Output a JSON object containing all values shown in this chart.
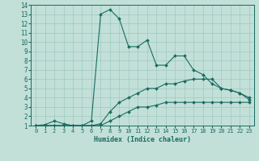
{
  "title": "",
  "xlabel": "Humidex (Indice chaleur)",
  "xlim": [
    -0.5,
    23.5
  ],
  "ylim": [
    1,
    14
  ],
  "xticks": [
    0,
    1,
    2,
    3,
    4,
    5,
    6,
    7,
    8,
    9,
    10,
    11,
    12,
    13,
    14,
    15,
    16,
    17,
    18,
    19,
    20,
    21,
    22,
    23
  ],
  "yticks": [
    1,
    2,
    3,
    4,
    5,
    6,
    7,
    8,
    9,
    10,
    11,
    12,
    13,
    14
  ],
  "bg_color": "#c2e0d8",
  "grid_color": "#9ec8c0",
  "line_color": "#1a6b60",
  "line1_x": [
    0,
    1,
    2,
    3,
    4,
    5,
    6,
    7,
    8,
    9,
    10,
    11,
    12,
    13,
    14,
    15,
    16,
    17,
    18,
    19,
    20,
    21,
    22,
    23
  ],
  "line1_y": [
    1,
    1.1,
    1.5,
    1.2,
    1,
    1,
    1.5,
    13,
    13.5,
    12.5,
    9.5,
    9.5,
    10.2,
    7.5,
    7.5,
    8.5,
    8.5,
    7,
    6.5,
    5.5,
    5,
    4.8,
    4.5,
    3.8
  ],
  "line2_x": [
    0,
    1,
    2,
    3,
    4,
    5,
    6,
    7,
    8,
    9,
    10,
    11,
    12,
    13,
    14,
    15,
    16,
    17,
    18,
    19,
    20,
    21,
    22,
    23
  ],
  "line2_y": [
    1,
    1,
    1,
    1,
    1,
    1,
    1,
    1.2,
    2.5,
    3.5,
    4,
    4.5,
    5,
    5,
    5.5,
    5.5,
    5.8,
    6,
    6,
    6,
    5,
    4.8,
    4.5,
    4
  ],
  "line3_x": [
    0,
    1,
    2,
    3,
    4,
    5,
    6,
    7,
    8,
    9,
    10,
    11,
    12,
    13,
    14,
    15,
    16,
    17,
    18,
    19,
    20,
    21,
    22,
    23
  ],
  "line3_y": [
    1,
    1,
    1,
    1,
    1,
    1,
    1,
    1,
    1.5,
    2,
    2.5,
    3,
    3,
    3.2,
    3.5,
    3.5,
    3.5,
    3.5,
    3.5,
    3.5,
    3.5,
    3.5,
    3.5,
    3.5
  ]
}
